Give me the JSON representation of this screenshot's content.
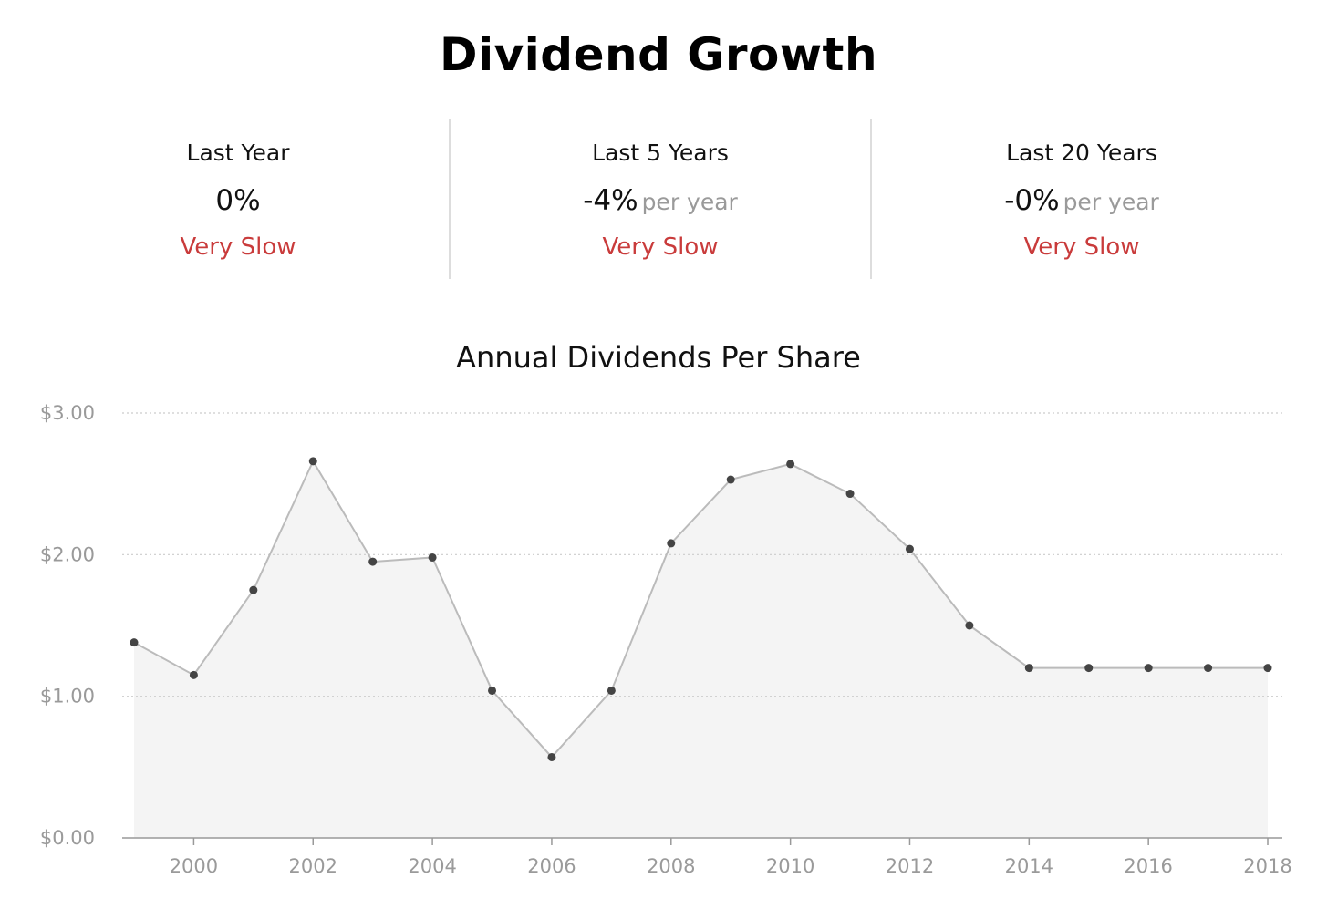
{
  "header": {
    "title": "Dividend Growth"
  },
  "stats": [
    {
      "label": "Last Year",
      "value": "0%",
      "unit": "",
      "rating": "Very Slow"
    },
    {
      "label": "Last 5 Years",
      "value": "-4%",
      "unit": "per year",
      "rating": "Very Slow"
    },
    {
      "label": "Last 20 Years",
      "value": "-0%",
      "unit": "per year",
      "rating": "Very Slow"
    }
  ],
  "colors": {
    "rating": "#c93b3b",
    "line": "#bbbbbb",
    "area": "#f4f4f4",
    "point": "#444444",
    "grid": "#cccccc",
    "axis": "#999999",
    "tick_text": "#9a9a9a"
  },
  "chart_data": {
    "type": "area",
    "title": "Annual Dividends Per Share",
    "xlabel": "",
    "ylabel": "",
    "x": [
      1999,
      2000,
      2001,
      2002,
      2003,
      2004,
      2005,
      2006,
      2007,
      2008,
      2009,
      2010,
      2011,
      2012,
      2013,
      2014,
      2015,
      2016,
      2017,
      2018
    ],
    "series": [
      {
        "values": [
          1.38,
          1.15,
          1.75,
          2.66,
          1.95,
          1.98,
          1.04,
          0.57,
          1.04,
          2.08,
          2.53,
          2.64,
          2.43,
          2.04,
          1.5,
          1.2,
          1.2,
          1.2,
          1.2,
          1.2
        ]
      }
    ],
    "xlim": [
      1999,
      2018
    ],
    "ylim": [
      0,
      3
    ],
    "x_ticks": [
      2000,
      2002,
      2004,
      2006,
      2008,
      2010,
      2012,
      2014,
      2016,
      2018
    ],
    "x_tick_labels": [
      "2000",
      "2002",
      "2004",
      "2006",
      "2008",
      "2010",
      "2012",
      "2014",
      "2016",
      "2018"
    ],
    "y_ticks": [
      0,
      1,
      2,
      3
    ],
    "y_tick_labels": [
      "$0.00",
      "$1.00",
      "$2.00",
      "$3.00"
    ],
    "grid": true,
    "legend": "none"
  }
}
